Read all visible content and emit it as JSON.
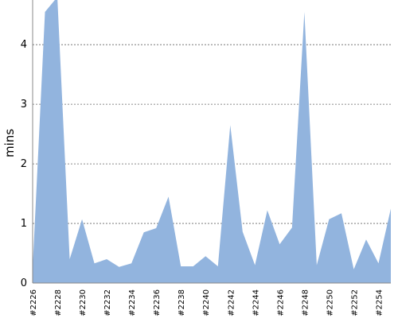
{
  "chart_data": {
    "type": "area",
    "title": "",
    "xlabel": "",
    "ylabel": "mins",
    "ylim": [
      0,
      4.75
    ],
    "y_ticks": [
      "0",
      "1",
      "2",
      "3",
      "4"
    ],
    "grid": true,
    "series": [
      {
        "color": "#92b4de",
        "x": [
          "#2226",
          "#2227",
          "#2228",
          "#2229",
          "#2230",
          "#2231",
          "#2232",
          "#2233",
          "#2234",
          "#2235",
          "#2236",
          "#2237",
          "#2238",
          "#2239",
          "#2240",
          "#2241",
          "#2242",
          "#2243",
          "#2244",
          "#2245",
          "#2246",
          "#2247",
          "#2248",
          "#2249",
          "#2250",
          "#2251",
          "#2252",
          "#2253",
          "#2254",
          "#2255"
        ],
        "values": [
          0.25,
          4.55,
          4.8,
          0.4,
          1.07,
          0.33,
          0.4,
          0.27,
          0.33,
          0.85,
          0.92,
          1.45,
          0.28,
          0.28,
          0.45,
          0.28,
          2.65,
          0.86,
          0.3,
          1.22,
          0.65,
          0.93,
          4.55,
          0.3,
          1.07,
          1.17,
          0.23,
          0.73,
          0.33,
          1.25
        ]
      }
    ],
    "x_tick_labels": [
      "#2226",
      "#2228",
      "#2230",
      "#2232",
      "#2234",
      "#2236",
      "#2238",
      "#2240",
      "#2242",
      "#2244",
      "#2246",
      "#2248",
      "#2250",
      "#2252",
      "#2254"
    ]
  }
}
